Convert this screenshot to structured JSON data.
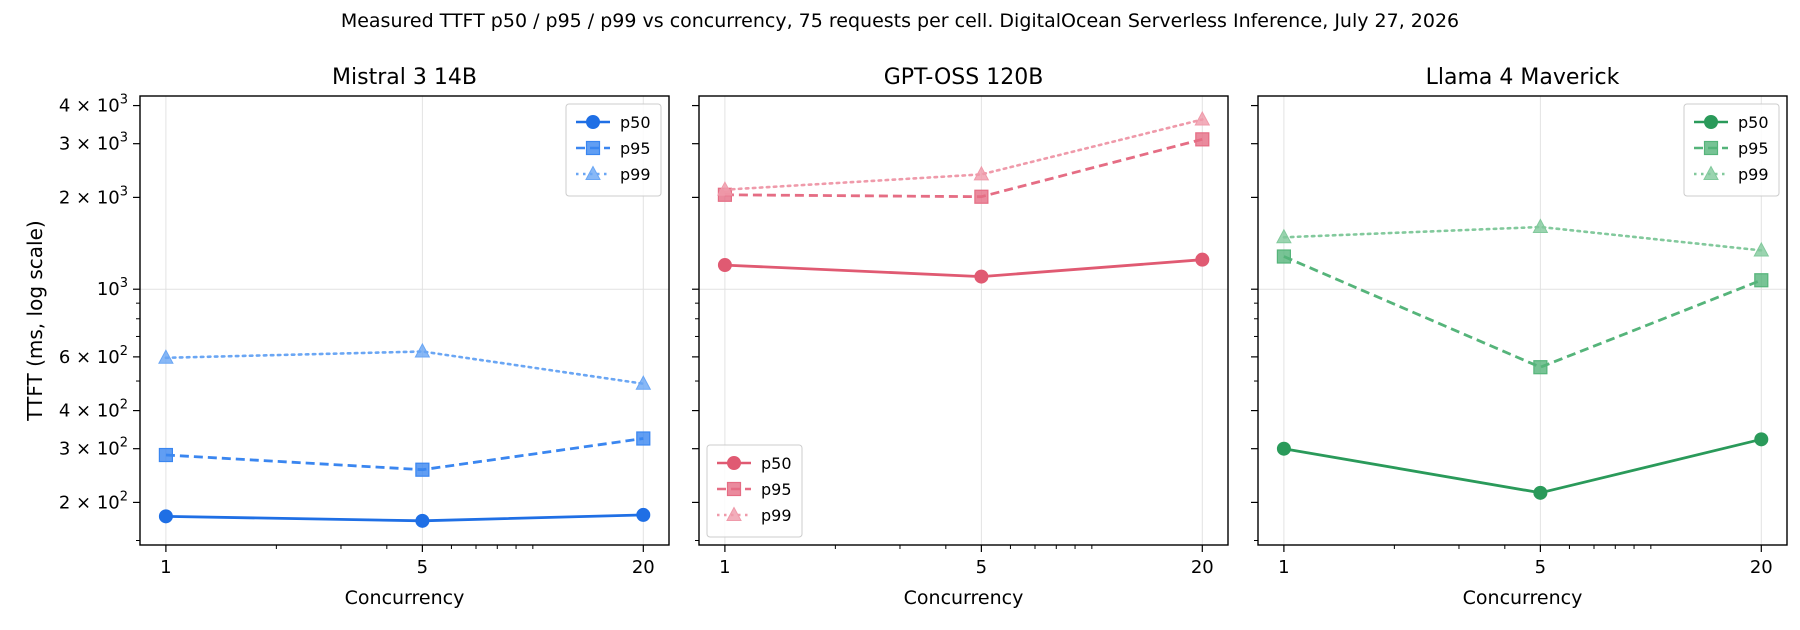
{
  "figure": {
    "title": "Measured TTFT p50 / p95 / p99 vs concurrency, 75 requests per cell. DigitalOcean Serverless Inference, July 27, 2026"
  },
  "chart_data": [
    {
      "type": "line",
      "title": "Mistral 3 14B",
      "xlabel": "Concurrency",
      "ylabel": "TTFT (ms, log scale)",
      "xscale": "log",
      "yscale": "log",
      "x": [
        1,
        5,
        20
      ],
      "x_tick_labels": [
        "1",
        "5",
        "20"
      ],
      "xlim": [
        0.85,
        23.5
      ],
      "ylim": [
        145,
        4300
      ],
      "grid": true,
      "legend_position": "upper right",
      "series": [
        {
          "name": "p50",
          "values": [
            180,
            174,
            182
          ],
          "color": "#1f6fe5",
          "marker": "circle",
          "dash": "solid"
        },
        {
          "name": "p95",
          "values": [
            286,
            256,
            324
          ],
          "color": "#3a86f0",
          "marker": "square",
          "dash": "dashed"
        },
        {
          "name": "p99",
          "values": [
            596,
            625,
            490
          ],
          "color": "#6aa6f4",
          "marker": "triangle",
          "dash": "dotted"
        }
      ]
    },
    {
      "type": "line",
      "title": "GPT-OSS 120B",
      "xlabel": "Concurrency",
      "ylabel": "",
      "xscale": "log",
      "yscale": "log",
      "x": [
        1,
        5,
        20
      ],
      "x_tick_labels": [
        "1",
        "5",
        "20"
      ],
      "xlim": [
        0.85,
        23.5
      ],
      "ylim": [
        145,
        4300
      ],
      "grid": true,
      "legend_position": "lower left",
      "series": [
        {
          "name": "p50",
          "values": [
            1200,
            1100,
            1250
          ],
          "color": "#e05a72",
          "marker": "circle",
          "dash": "solid"
        },
        {
          "name": "p95",
          "values": [
            2040,
            2010,
            3100
          ],
          "color": "#e56d84",
          "marker": "square",
          "dash": "dashed"
        },
        {
          "name": "p99",
          "values": [
            2120,
            2380,
            3600
          ],
          "color": "#ef9aaa",
          "marker": "triangle",
          "dash": "dotted"
        }
      ]
    },
    {
      "type": "line",
      "title": "Llama 4 Maverick",
      "xlabel": "Concurrency",
      "ylabel": "",
      "xscale": "log",
      "yscale": "log",
      "x": [
        1,
        5,
        20
      ],
      "x_tick_labels": [
        "1",
        "5",
        "20"
      ],
      "xlim": [
        0.85,
        23.5
      ],
      "ylim": [
        145,
        4300
      ],
      "grid": true,
      "legend_position": "upper right",
      "series": [
        {
          "name": "p50",
          "values": [
            300,
            215,
            322
          ],
          "color": "#2a9a5a",
          "marker": "circle",
          "dash": "solid"
        },
        {
          "name": "p95",
          "values": [
            1280,
            555,
            1070
          ],
          "color": "#55b47a",
          "marker": "square",
          "dash": "dashed"
        },
        {
          "name": "p99",
          "values": [
            1480,
            1600,
            1340
          ],
          "color": "#82c99c",
          "marker": "triangle",
          "dash": "dotted"
        }
      ]
    }
  ],
  "y_tick_labels": [
    {
      "value": 200,
      "mantissa": "2",
      "exponent": "2"
    },
    {
      "value": 300,
      "mantissa": "3",
      "exponent": "2"
    },
    {
      "value": 400,
      "mantissa": "4",
      "exponent": "2"
    },
    {
      "value": 600,
      "mantissa": "6",
      "exponent": "2"
    },
    {
      "value": 1000,
      "mantissa": "",
      "exponent": "3"
    },
    {
      "value": 2000,
      "mantissa": "2",
      "exponent": "3"
    },
    {
      "value": 3000,
      "mantissa": "3",
      "exponent": "3"
    },
    {
      "value": 4000,
      "mantissa": "4",
      "exponent": "3"
    }
  ],
  "y_tick_base": "10",
  "y_tick_times": "×"
}
